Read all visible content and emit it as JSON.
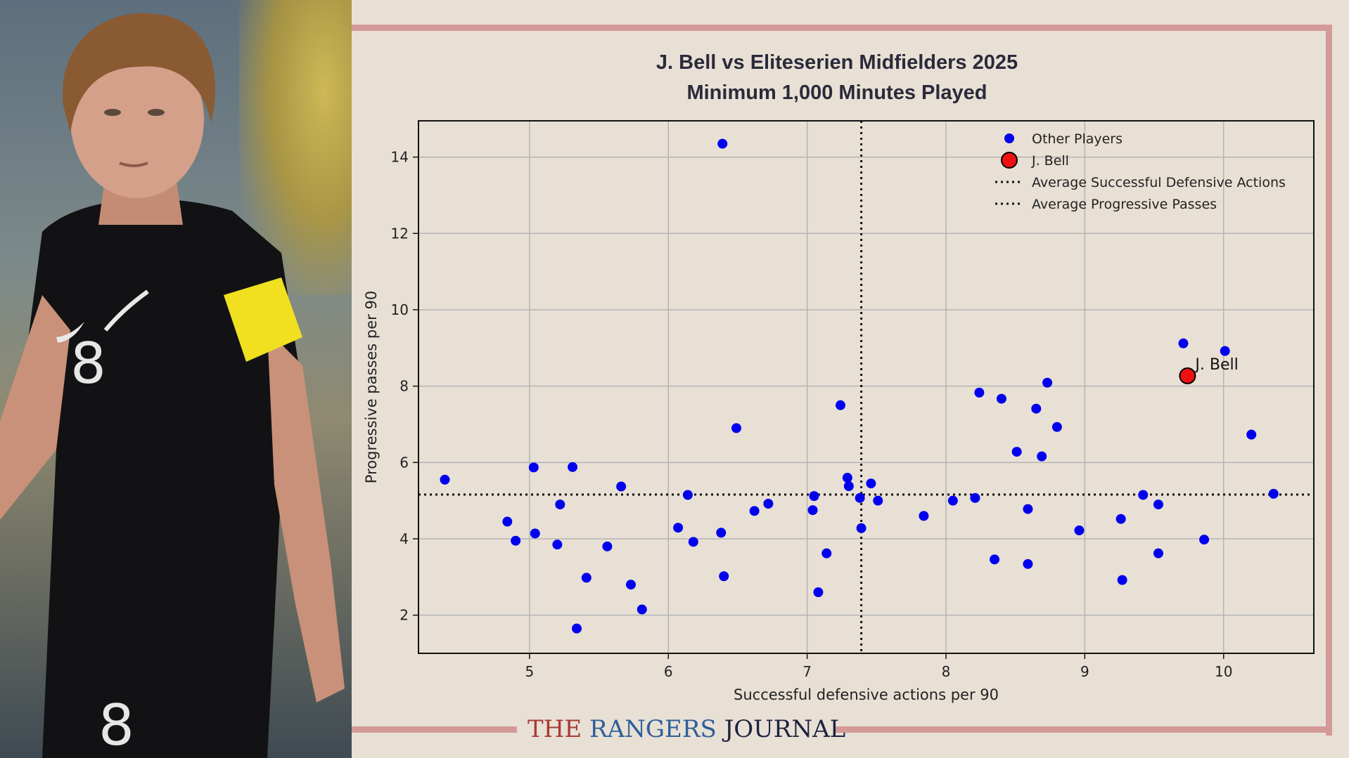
{
  "title_line1": "J. Bell vs Eliteserien Midfielders 2025",
  "title_line2": "Minimum 1,000 Minutes Played",
  "brand": {
    "part1": "THE",
    "part2": "RANGERS",
    "part3": "JOURNAL"
  },
  "colors": {
    "other_players": "#0000ee",
    "highlight": "#ee1111",
    "frame": "#d39a98",
    "background": "#e8e0d5"
  },
  "chart_data": {
    "type": "scatter",
    "title": "J. Bell vs Eliteserien Midfielders 2025\nMinimum 1,000 Minutes Played",
    "xlabel": "Successful defensive actions per 90",
    "ylabel": "Progressive passes per 90",
    "xlim": [
      4.2,
      10.65
    ],
    "ylim": [
      1.0,
      14.95
    ],
    "xticks": [
      5,
      6,
      7,
      8,
      9,
      10
    ],
    "yticks": [
      2,
      4,
      6,
      8,
      10,
      12,
      14
    ],
    "grid": true,
    "legend_position": "top-right",
    "legend": [
      "Other Players",
      "J. Bell",
      "Average Successful Defensive Actions",
      "Average Progressive Passes"
    ],
    "averages": {
      "x": 7.39,
      "y": 5.16
    },
    "series": [
      {
        "name": "Other Players",
        "points": [
          [
            4.39,
            5.55
          ],
          [
            4.84,
            4.45
          ],
          [
            4.9,
            3.95
          ],
          [
            5.03,
            5.87
          ],
          [
            5.04,
            4.14
          ],
          [
            5.2,
            3.85
          ],
          [
            5.22,
            4.9
          ],
          [
            5.31,
            5.88
          ],
          [
            5.34,
            1.65
          ],
          [
            5.41,
            2.98
          ],
          [
            5.56,
            3.8
          ],
          [
            5.66,
            5.37
          ],
          [
            5.73,
            2.8
          ],
          [
            5.81,
            2.15
          ],
          [
            6.07,
            4.29
          ],
          [
            6.14,
            5.15
          ],
          [
            6.18,
            3.92
          ],
          [
            6.38,
            4.16
          ],
          [
            6.39,
            14.35
          ],
          [
            6.4,
            3.02
          ],
          [
            6.49,
            6.9
          ],
          [
            6.62,
            4.73
          ],
          [
            6.72,
            4.92
          ],
          [
            7.04,
            4.75
          ],
          [
            7.05,
            5.12
          ],
          [
            7.08,
            2.6
          ],
          [
            7.14,
            3.62
          ],
          [
            7.24,
            7.5
          ],
          [
            7.29,
            5.6
          ],
          [
            7.3,
            5.38
          ],
          [
            7.38,
            5.07
          ],
          [
            7.39,
            4.28
          ],
          [
            7.46,
            5.45
          ],
          [
            7.51,
            5.0
          ],
          [
            7.84,
            4.6
          ],
          [
            8.05,
            5.0
          ],
          [
            8.21,
            5.07
          ],
          [
            8.24,
            7.83
          ],
          [
            8.35,
            3.46
          ],
          [
            8.4,
            7.67
          ],
          [
            8.51,
            6.28
          ],
          [
            8.59,
            4.78
          ],
          [
            8.59,
            3.34
          ],
          [
            8.65,
            7.41
          ],
          [
            8.69,
            6.16
          ],
          [
            8.73,
            8.09
          ],
          [
            8.8,
            6.93
          ],
          [
            8.96,
            4.22
          ],
          [
            9.26,
            4.52
          ],
          [
            9.27,
            2.92
          ],
          [
            9.42,
            5.15
          ],
          [
            9.53,
            4.9
          ],
          [
            9.53,
            3.62
          ],
          [
            9.71,
            9.12
          ],
          [
            9.86,
            3.98
          ],
          [
            10.01,
            8.92
          ],
          [
            10.2,
            6.73
          ],
          [
            10.36,
            5.18
          ]
        ]
      },
      {
        "name": "J. Bell",
        "points": [
          [
            9.74,
            8.27
          ]
        ],
        "label": "J. Bell"
      }
    ]
  }
}
